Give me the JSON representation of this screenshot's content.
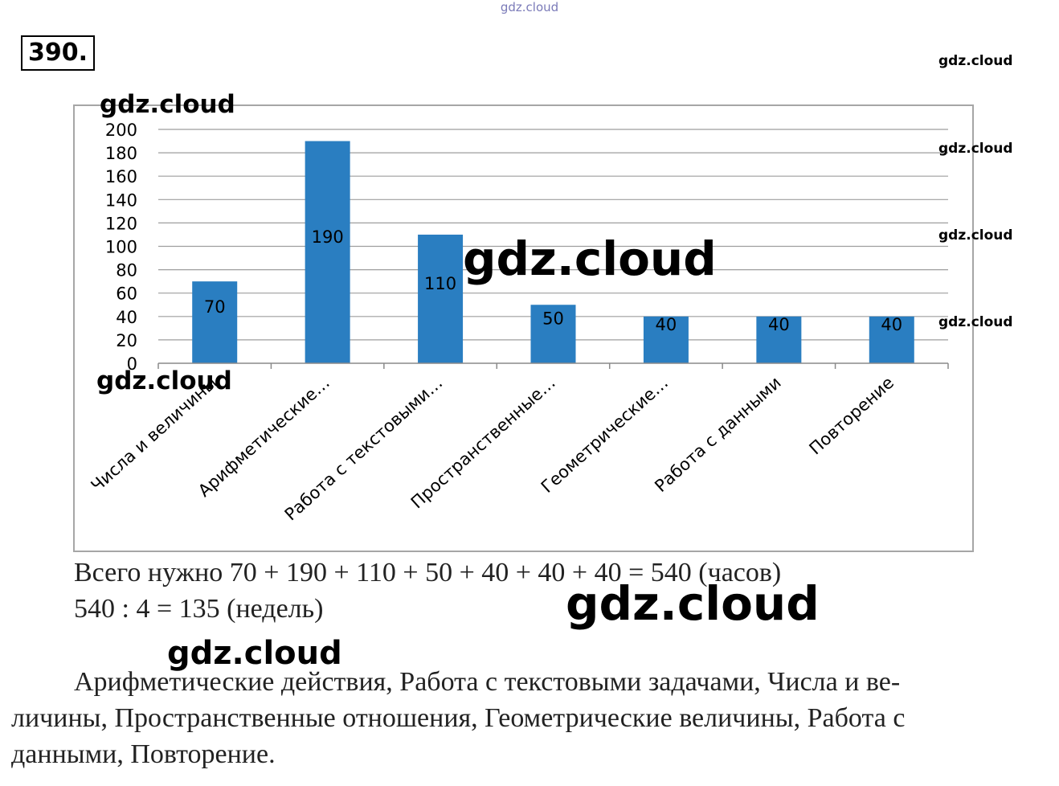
{
  "problem_number": "390.",
  "watermark": "gdz.cloud",
  "chart_data": {
    "type": "bar",
    "categories": [
      "Числа и величины",
      "Арифметические…",
      "Работа с текстовыми…",
      "Пространственные…",
      "Геометрические…",
      "Работа с данными",
      "Повторение"
    ],
    "values": [
      70,
      190,
      110,
      50,
      40,
      40,
      40
    ],
    "data_labels": [
      "70",
      "190",
      "110",
      "50",
      "40",
      "40",
      "40"
    ],
    "yticks": [
      "0",
      "20",
      "40",
      "60",
      "80",
      "100",
      "120",
      "140",
      "160",
      "180",
      "200"
    ],
    "ylim": [
      0,
      200
    ],
    "grid": true,
    "legend": "none",
    "bar_color": "#2a7ec1"
  },
  "solution": {
    "line1": "Всего нужно 70 + 190 + 110 + 50 + 40 + 40 + 40 = 540 (часов)",
    "line2": "540 : 4 = 135 (недель)",
    "answer_line1": "Арифметические действия, Работа с текстовыми задачами, Числа и ве-",
    "answer_line2": "личины, Пространственные отношения, Геометрические величины, Работа с",
    "answer_line3": "данными, Повторение."
  }
}
